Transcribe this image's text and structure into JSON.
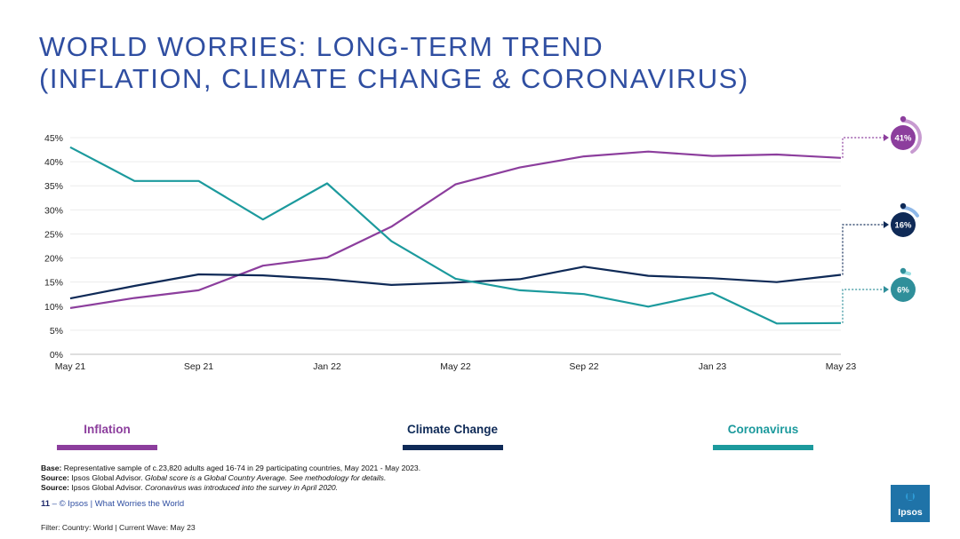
{
  "title": {
    "line1": "WORLD WORRIES: LONG-TERM TREND",
    "line2": "(INFLATION, CLIMATE CHANGE & CORONAVIRUS)"
  },
  "chart_data": {
    "type": "line",
    "title": "World worries: long-term trend (Inflation, Climate Change & Coronavirus)",
    "xlabel": "",
    "ylabel": "",
    "ylim": [
      0,
      45
    ],
    "yticks": [
      0,
      5,
      10,
      15,
      20,
      25,
      30,
      35,
      40,
      45
    ],
    "ytick_labels": [
      "0%",
      "5%",
      "10%",
      "15%",
      "20%",
      "25%",
      "30%",
      "35%",
      "40%",
      "45%"
    ],
    "grid": true,
    "x": [
      "May 21",
      "Jul 21",
      "Sep 21",
      "Nov 21",
      "Jan 22",
      "Mar 22",
      "May 22",
      "Jul 22",
      "Sep 22",
      "Nov 22",
      "Jan 23",
      "Mar 23",
      "May 23"
    ],
    "xtick_labels": [
      "May 21",
      "Sep 21",
      "Jan 22",
      "May 22",
      "Sep 22",
      "Jan 23",
      "May 23"
    ],
    "series": [
      {
        "name": "Inflation",
        "color": "#8c3e9d",
        "values": [
          9.6,
          11.7,
          13.3,
          18.4,
          20.1,
          26.5,
          35.3,
          38.8,
          41.1,
          42.1,
          41.2,
          41.5,
          40.8
        ]
      },
      {
        "name": "Climate Change",
        "color": "#0f2a57",
        "values": [
          11.6,
          14.2,
          16.6,
          16.4,
          15.6,
          14.4,
          14.9,
          15.6,
          18.2,
          16.3,
          15.8,
          15.0,
          16.5
        ]
      },
      {
        "name": "Coronavirus",
        "color": "#1c9a9d",
        "values": [
          43.0,
          36.0,
          36.0,
          28.0,
          35.5,
          23.5,
          15.7,
          13.3,
          12.5,
          9.9,
          12.7,
          6.4,
          6.5
        ]
      }
    ],
    "end_badges": [
      {
        "series": "Inflation",
        "label": "41%",
        "value": 41,
        "color": "#8c3e9d",
        "ring_color": "#c79ad0"
      },
      {
        "series": "Climate Change",
        "label": "16%",
        "value": 16,
        "color": "#0f2a57",
        "ring_color": "#8fb8e8"
      },
      {
        "series": "Coronavirus",
        "label": "6%",
        "value": 6,
        "color": "#2f8f9a",
        "ring_color": "#9ce0e4"
      }
    ]
  },
  "legend": [
    {
      "label": "Inflation",
      "color": "#8c3e9d"
    },
    {
      "label": "Climate Change",
      "color": "#0f2a57"
    },
    {
      "label": "Coronavirus",
      "color": "#1c9a9d"
    }
  ],
  "notes": {
    "base_label": "Base:",
    "base_text": " Representative sample of c.23,820 adults aged 16-74 in 29 participating countries, May 2021 - May 2023.",
    "source1_label": "Source:",
    "source1_plain": " Ipsos Global Advisor. ",
    "source1_italic": "Global score is a Global Country Average. See methodology for details.",
    "source2_label": "Source:",
    "source2_plain": " Ipsos Global Advisor. ",
    "source2_italic": "Coronavirus was introduced into the survey in April 2020."
  },
  "footer": {
    "page_number": "11",
    "separator": " – ",
    "text": "© Ipsos | What Worries the World"
  },
  "filter": "Filter: Country: World | Current Wave: May 23",
  "logo": {
    "text": "Ipsos",
    "color": "#1f73a8"
  }
}
